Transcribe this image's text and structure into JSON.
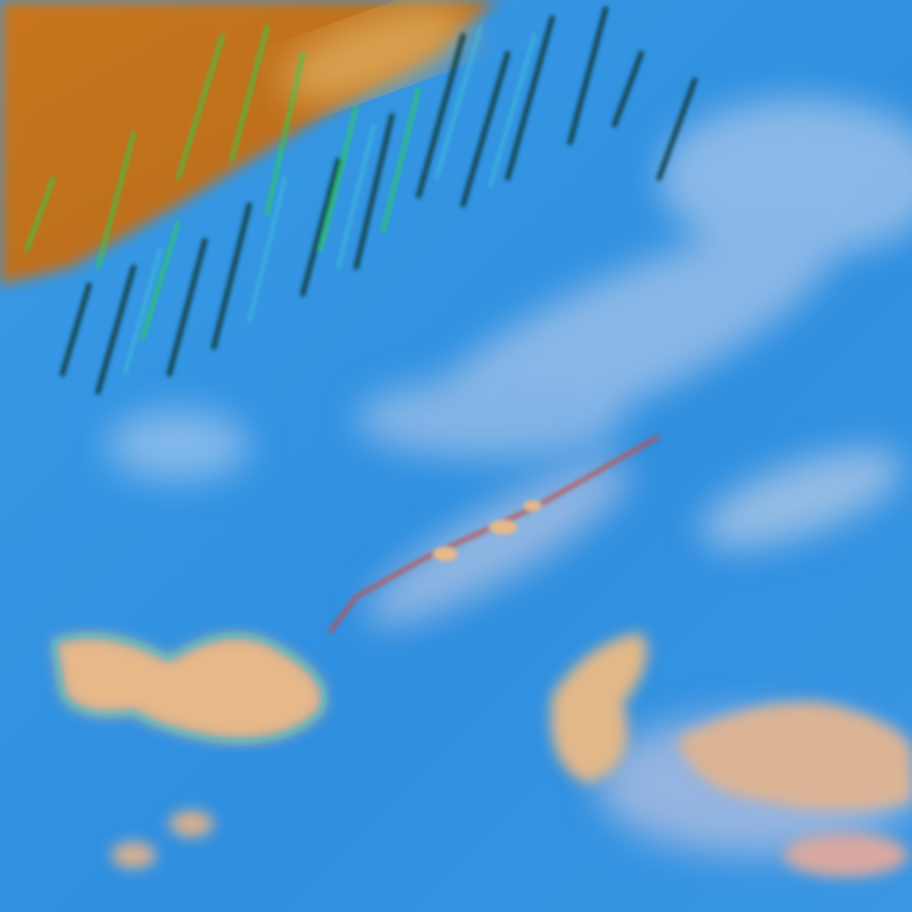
{
  "image": {
    "kind": "false-color satellite imagery",
    "colors": {
      "ocean": "#2f8fe0",
      "ocean_light": "#4aa6ee",
      "thin_cloud": "#a9c6ea",
      "land_desert": "#c8781e",
      "vegetation_streaks": "#2bd24a",
      "dark_streaks": "#0d3a3a",
      "warm_cloud": "#e7b888",
      "red_edge": "#c0504a"
    }
  }
}
